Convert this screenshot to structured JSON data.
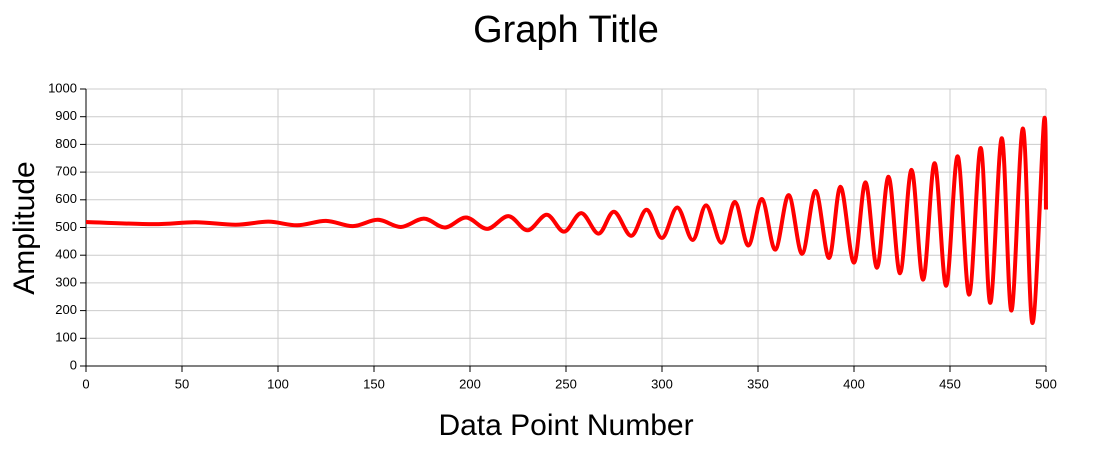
{
  "chart_data": {
    "type": "line",
    "title": "Graph Title",
    "x_label": "Data Point Number",
    "y_label": "Amplitude",
    "x": [
      0,
      35,
      57,
      78,
      95,
      110,
      125,
      139,
      152,
      164,
      176,
      187,
      198,
      209,
      220,
      230,
      240,
      249,
      258,
      267,
      275,
      284,
      292,
      300,
      308,
      316,
      323,
      331,
      338,
      345,
      352,
      359,
      366,
      373,
      380,
      387,
      393,
      400,
      406,
      412,
      418,
      424,
      430,
      436,
      442,
      448,
      454,
      460,
      466,
      471,
      477,
      482,
      488,
      493,
      499,
      500
    ],
    "series": [
      {
        "color": "#ff0000",
        "values": [
          520,
          512,
          519,
          510,
          521,
          508,
          524,
          505,
          528,
          502,
          532,
          500,
          536,
          495,
          541,
          490,
          546,
          485,
          552,
          478,
          557,
          470,
          564,
          462,
          572,
          455,
          580,
          445,
          592,
          435,
          603,
          420,
          617,
          405,
          632,
          390,
          647,
          373,
          663,
          355,
          683,
          335,
          708,
          312,
          732,
          290,
          757,
          258,
          787,
          228,
          822,
          200,
          857,
          155,
          887,
          565
        ]
      }
    ],
    "xlim": [
      0,
      500
    ],
    "xticks": [
      0,
      50,
      100,
      150,
      200,
      250,
      300,
      350,
      400,
      450,
      500
    ],
    "ylim": [
      0,
      1000
    ],
    "yticks": [
      0,
      100,
      200,
      300,
      400,
      500,
      600,
      700,
      800,
      900,
      1000
    ],
    "grid": true
  }
}
